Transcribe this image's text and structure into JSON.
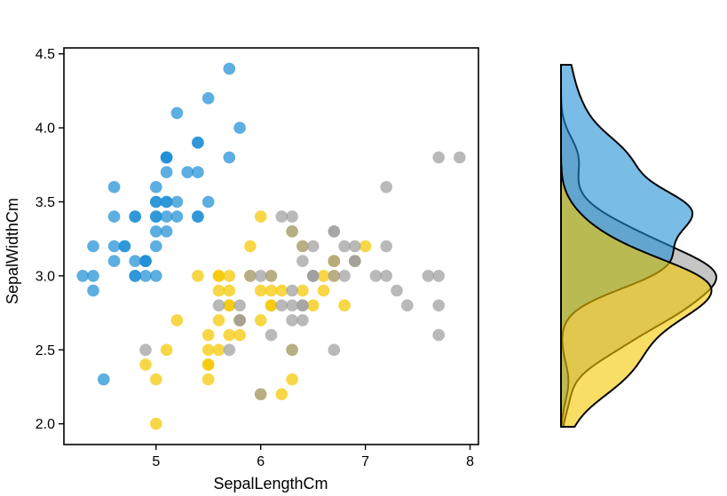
{
  "chart_data": {
    "type": "scatter",
    "xlabel": "SepalLengthCm",
    "ylabel": "SepalWidthCm",
    "xlim": [
      4.12,
      8.08
    ],
    "ylim": [
      1.86,
      4.54
    ],
    "xticks": [
      "5",
      "6",
      "7",
      "8"
    ],
    "yticks": [
      "2.0",
      "2.5",
      "3.0",
      "3.5",
      "4.0",
      "4.5"
    ],
    "grid": false,
    "legend": "none",
    "marginal": "y-density",
    "series": [
      {
        "color": "#1f8fd6",
        "points": [
          [
            5.1,
            3.5
          ],
          [
            4.9,
            3.0
          ],
          [
            4.7,
            3.2
          ],
          [
            4.6,
            3.1
          ],
          [
            5.0,
            3.6
          ],
          [
            5.4,
            3.9
          ],
          [
            4.6,
            3.4
          ],
          [
            5.0,
            3.4
          ],
          [
            4.4,
            2.9
          ],
          [
            4.9,
            3.1
          ],
          [
            5.4,
            3.7
          ],
          [
            4.8,
            3.4
          ],
          [
            4.8,
            3.0
          ],
          [
            4.3,
            3.0
          ],
          [
            5.8,
            4.0
          ],
          [
            5.7,
            4.4
          ],
          [
            5.4,
            3.9
          ],
          [
            5.1,
            3.5
          ],
          [
            5.7,
            3.8
          ],
          [
            5.1,
            3.8
          ],
          [
            5.4,
            3.4
          ],
          [
            5.1,
            3.7
          ],
          [
            4.6,
            3.6
          ],
          [
            5.1,
            3.3
          ],
          [
            4.8,
            3.4
          ],
          [
            5.0,
            3.0
          ],
          [
            5.0,
            3.4
          ],
          [
            5.2,
            3.5
          ],
          [
            5.2,
            3.4
          ],
          [
            4.7,
            3.2
          ],
          [
            4.8,
            3.1
          ],
          [
            5.4,
            3.4
          ],
          [
            5.2,
            4.1
          ],
          [
            5.5,
            4.2
          ],
          [
            4.9,
            3.1
          ],
          [
            5.0,
            3.2
          ],
          [
            5.5,
            3.5
          ],
          [
            4.9,
            3.1
          ],
          [
            4.4,
            3.0
          ],
          [
            5.1,
            3.4
          ],
          [
            5.0,
            3.5
          ],
          [
            4.5,
            2.3
          ],
          [
            4.4,
            3.2
          ],
          [
            5.0,
            3.5
          ],
          [
            5.1,
            3.8
          ],
          [
            4.8,
            3.0
          ],
          [
            5.1,
            3.8
          ],
          [
            4.6,
            3.2
          ],
          [
            5.3,
            3.7
          ],
          [
            5.0,
            3.3
          ]
        ]
      },
      {
        "color": "#f5c800",
        "points": [
          [
            5.5,
            2.3
          ],
          [
            6.5,
            2.8
          ],
          [
            5.7,
            2.8
          ],
          [
            6.3,
            3.3
          ],
          [
            4.9,
            2.4
          ],
          [
            6.6,
            2.9
          ],
          [
            5.2,
            2.7
          ],
          [
            5.0,
            2.0
          ],
          [
            5.9,
            3.0
          ],
          [
            6.0,
            2.2
          ],
          [
            6.1,
            2.9
          ],
          [
            5.6,
            2.9
          ],
          [
            6.7,
            3.1
          ],
          [
            5.6,
            3.0
          ],
          [
            5.8,
            2.7
          ],
          [
            6.2,
            2.2
          ],
          [
            5.6,
            2.5
          ],
          [
            5.9,
            3.2
          ],
          [
            6.1,
            2.8
          ],
          [
            6.3,
            2.5
          ],
          [
            6.1,
            2.8
          ],
          [
            6.4,
            2.9
          ],
          [
            6.6,
            3.0
          ],
          [
            6.8,
            2.8
          ],
          [
            6.7,
            3.0
          ],
          [
            6.0,
            2.9
          ],
          [
            5.7,
            2.6
          ],
          [
            5.5,
            2.4
          ],
          [
            5.5,
            2.4
          ],
          [
            5.8,
            2.7
          ],
          [
            6.0,
            2.7
          ],
          [
            5.4,
            3.0
          ],
          [
            6.0,
            3.4
          ],
          [
            6.7,
            3.1
          ],
          [
            6.3,
            2.3
          ],
          [
            5.6,
            3.0
          ],
          [
            5.5,
            2.5
          ],
          [
            5.5,
            2.6
          ],
          [
            6.1,
            3.0
          ],
          [
            5.8,
            2.6
          ],
          [
            5.0,
            2.3
          ],
          [
            5.6,
            2.7
          ],
          [
            5.7,
            3.0
          ],
          [
            5.7,
            2.9
          ],
          [
            6.2,
            2.9
          ],
          [
            5.1,
            2.5
          ],
          [
            5.7,
            2.8
          ],
          [
            6.9,
            3.1
          ],
          [
            7.0,
            3.2
          ],
          [
            6.4,
            3.2
          ]
        ]
      },
      {
        "color": "#9e9e9e",
        "points": [
          [
            6.3,
            3.3
          ],
          [
            5.8,
            2.7
          ],
          [
            7.1,
            3.0
          ],
          [
            6.3,
            2.9
          ],
          [
            6.5,
            3.0
          ],
          [
            7.6,
            3.0
          ],
          [
            4.9,
            2.5
          ],
          [
            7.3,
            2.9
          ],
          [
            6.7,
            2.5
          ],
          [
            7.2,
            3.6
          ],
          [
            6.5,
            3.2
          ],
          [
            6.4,
            2.7
          ],
          [
            6.8,
            3.0
          ],
          [
            5.7,
            2.5
          ],
          [
            5.8,
            2.8
          ],
          [
            6.4,
            3.2
          ],
          [
            6.5,
            3.0
          ],
          [
            7.7,
            3.8
          ],
          [
            7.7,
            2.6
          ],
          [
            6.0,
            2.2
          ],
          [
            6.9,
            3.2
          ],
          [
            5.6,
            2.8
          ],
          [
            7.7,
            2.8
          ],
          [
            6.3,
            2.7
          ],
          [
            6.7,
            3.3
          ],
          [
            7.2,
            3.2
          ],
          [
            6.2,
            2.8
          ],
          [
            6.1,
            3.0
          ],
          [
            6.4,
            2.8
          ],
          [
            7.2,
            3.0
          ],
          [
            7.4,
            2.8
          ],
          [
            7.9,
            3.8
          ],
          [
            6.4,
            2.8
          ],
          [
            6.3,
            2.8
          ],
          [
            6.1,
            2.6
          ],
          [
            7.7,
            3.0
          ],
          [
            6.3,
            3.4
          ],
          [
            6.4,
            3.1
          ],
          [
            6.0,
            3.0
          ],
          [
            6.9,
            3.1
          ],
          [
            6.7,
            3.1
          ],
          [
            6.9,
            3.1
          ],
          [
            5.8,
            2.7
          ],
          [
            6.8,
            3.2
          ],
          [
            6.7,
            3.3
          ],
          [
            6.7,
            3.0
          ],
          [
            6.3,
            2.5
          ],
          [
            6.5,
            3.0
          ],
          [
            6.2,
            3.4
          ],
          [
            5.9,
            3.0
          ]
        ]
      }
    ]
  }
}
